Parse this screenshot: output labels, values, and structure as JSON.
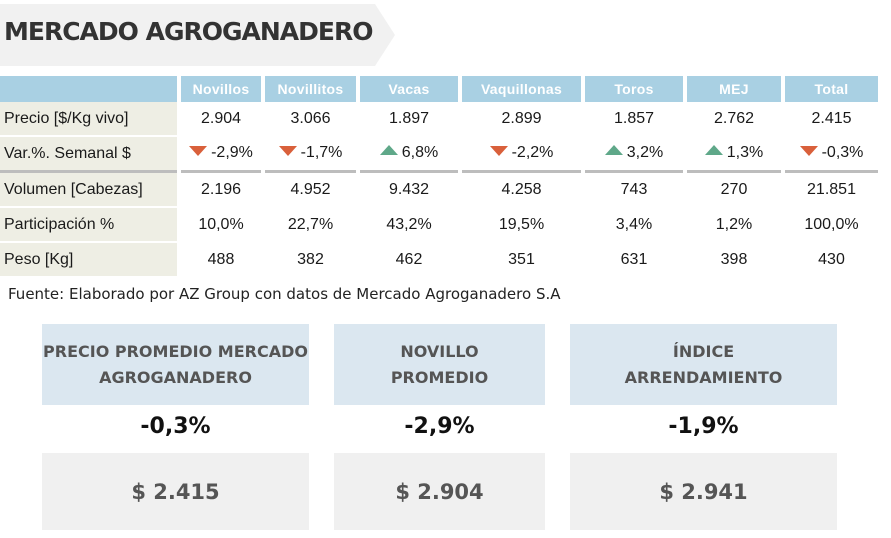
{
  "title": "MERCADO AGROGANADERO",
  "table": {
    "columns": [
      "Novillos",
      "Novillitos",
      "Vacas",
      "Vaquillonas",
      "Toros",
      "MEJ",
      "Total"
    ],
    "rows": [
      {
        "label": "Precio [$/Kg vivo]",
        "values": [
          "2.904",
          "3.066",
          "1.897",
          "2.899",
          "1.857",
          "2.762",
          "2.415"
        ]
      },
      {
        "label": "Var.%. Semanal $",
        "values": [
          "-2,9%",
          "-1,7%",
          "6,8%",
          "-2,2%",
          "3,2%",
          "1,3%",
          "-0,3%"
        ],
        "trend": [
          "down",
          "down",
          "up",
          "down",
          "up",
          "up",
          "down"
        ]
      },
      {
        "label": "Volumen [Cabezas]",
        "values": [
          "2.196",
          "4.952",
          "9.432",
          "4.258",
          "743",
          "270",
          "21.851"
        ]
      },
      {
        "label": "Participación %",
        "values": [
          "10,0%",
          "22,7%",
          "43,2%",
          "19,5%",
          "3,4%",
          "1,2%",
          "100,0%"
        ]
      },
      {
        "label": "Peso [Kg]",
        "values": [
          "488",
          "382",
          "462",
          "351",
          "631",
          "398",
          "430"
        ]
      }
    ]
  },
  "source": "Fuente: Elaborado por AZ Group con datos de Mercado Agroganadero S.A",
  "cards": [
    {
      "line1": "PRECIO PROMEDIO MERCADO",
      "line2": "AGROGANADERO",
      "pct": "-0,3%",
      "value": "$ 2.415"
    },
    {
      "line1": "NOVILLO",
      "line2": "PROMEDIO",
      "pct": "-2,9%",
      "value": "$ 2.904"
    },
    {
      "line1": "ÍNDICE",
      "line2": "ARRENDAMIENTO",
      "pct": "-1,9%",
      "value": "$ 2.941"
    }
  ],
  "colors": {
    "header_blue": "#a9d0e3",
    "label_bg": "#eeeee4",
    "down_arrow": "#d9603b",
    "up_arrow": "#5fa889",
    "card_head": "#dbe7f0",
    "card_value_bg": "#f0f0f0"
  },
  "icons": {
    "down": "triangle-down-icon",
    "up": "triangle-up-icon"
  }
}
